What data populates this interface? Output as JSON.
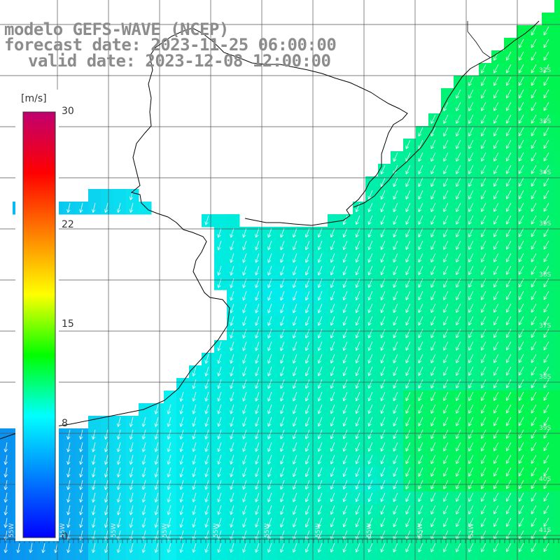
{
  "title": {
    "line1": "modelo GEFS-WAVE (NCEP)",
    "line2": "forecast date: 2023-11-25 06:00:00",
    "line3": "valid date: 2023-12-08 12:00:00"
  },
  "colorbar": {
    "unit": "[m/s]",
    "ticks": [
      "30",
      "22",
      "15",
      "8",
      "0"
    ],
    "tick_values": [
      30,
      22,
      15,
      8,
      0
    ],
    "min": 0,
    "max": 30,
    "colors": [
      "#0000ff",
      "#0080ff",
      "#00ffff",
      "#00ff00",
      "#ffff00",
      "#ff8000",
      "#ff0000",
      "#c00070"
    ]
  },
  "map": {
    "lon_labels": [
      "55W",
      "55W",
      "55W",
      "55W",
      "55W",
      "55W",
      "55W",
      "55W",
      "55W",
      "51W"
    ],
    "lat_labels": [
      "32S",
      "33S",
      "34S",
      "35S",
      "36S",
      "37S",
      "38S",
      "39S",
      "40S",
      "41S"
    ],
    "ocean_color_low": "#0a6cf0",
    "ocean_color_mid": "#00e8f0",
    "ocean_color_high": "#00ee70",
    "land_color": "#ffffff",
    "coast_color": "#000000",
    "grid_color": "#505050",
    "arrow_color": "#ffffff",
    "wind_direction": "south-southwest"
  }
}
